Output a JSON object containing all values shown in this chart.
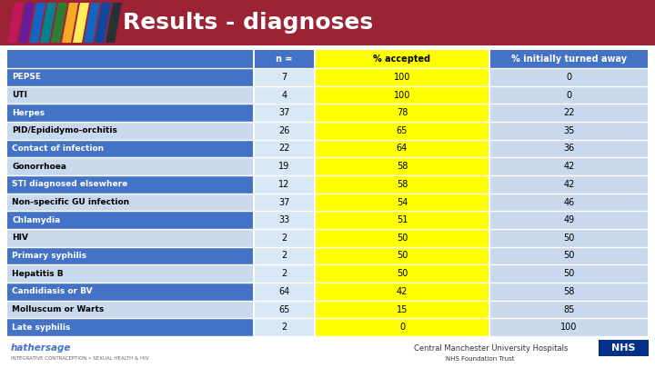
{
  "title": "Results - diagnoses",
  "title_bg": "#9B2335",
  "title_color": "#FFFFFF",
  "header": [
    "n =",
    "% accepted",
    "% initially turned away"
  ],
  "header_bg_col1": "#4472C4",
  "header_bg_col2": "#FFFF00",
  "header_bg_col3": "#4472C4",
  "header_text_col1": "#FFFFFF",
  "header_text_col2": "#000000",
  "header_text_col3": "#FFFFFF",
  "rows": [
    {
      "label": "PEPSE",
      "n": 7,
      "accepted": 100,
      "turned": 0
    },
    {
      "label": "UTI",
      "n": 4,
      "accepted": 100,
      "turned": 0
    },
    {
      "label": "Herpes",
      "n": 37,
      "accepted": 78,
      "turned": 22
    },
    {
      "label": "PID/Epididymo-orchitis",
      "n": 26,
      "accepted": 65,
      "turned": 35
    },
    {
      "label": "Contact of infection",
      "n": 22,
      "accepted": 64,
      "turned": 36
    },
    {
      "label": "Gonorrhoea",
      "n": 19,
      "accepted": 58,
      "turned": 42
    },
    {
      "label": "STI diagnosed elsewhere",
      "n": 12,
      "accepted": 58,
      "turned": 42
    },
    {
      "label": "Non-specific GU infection",
      "n": 37,
      "accepted": 54,
      "turned": 46
    },
    {
      "label": "Chlamydia",
      "n": 33,
      "accepted": 51,
      "turned": 49
    },
    {
      "label": "HIV",
      "n": 2,
      "accepted": 50,
      "turned": 50
    },
    {
      "label": "Primary syphilis",
      "n": 2,
      "accepted": 50,
      "turned": 50
    },
    {
      "label": "Hepatitis B",
      "n": 2,
      "accepted": 50,
      "turned": 50
    },
    {
      "label": "Candidiasis or BV",
      "n": 64,
      "accepted": 42,
      "turned": 58
    },
    {
      "label": "Molluscum or Warts",
      "n": 65,
      "accepted": 15,
      "turned": 85
    },
    {
      "label": "Late syphilis",
      "n": 2,
      "accepted": 0,
      "turned": 100
    }
  ],
  "row_blue_bg": "#4472C4",
  "row_light_bg": "#C9D9ED",
  "row_n_bg": "#D9E8F5",
  "row_turned_bg": "#C9D9ED",
  "accepted_bg": "#FFFF00",
  "stripe_colors": [
    "#C2185B",
    "#7B1FA2",
    "#1976D2",
    "#388E3C",
    "#F9A825",
    "#FFFF00",
    "#1976D2",
    "#1565C0",
    "#1A237E",
    "#1A237E"
  ],
  "stripe_colors2": [
    "#B71C1C",
    "#880E4F",
    "#4A148C",
    "#1A237E",
    "#006064",
    "#1B5E20",
    "#F57F17",
    "#E65100",
    "#BF360C",
    "#37474F"
  ],
  "label_font_size": 6.5,
  "data_font_size": 7,
  "header_font_size": 7,
  "bg_color": "#FFFFFF"
}
